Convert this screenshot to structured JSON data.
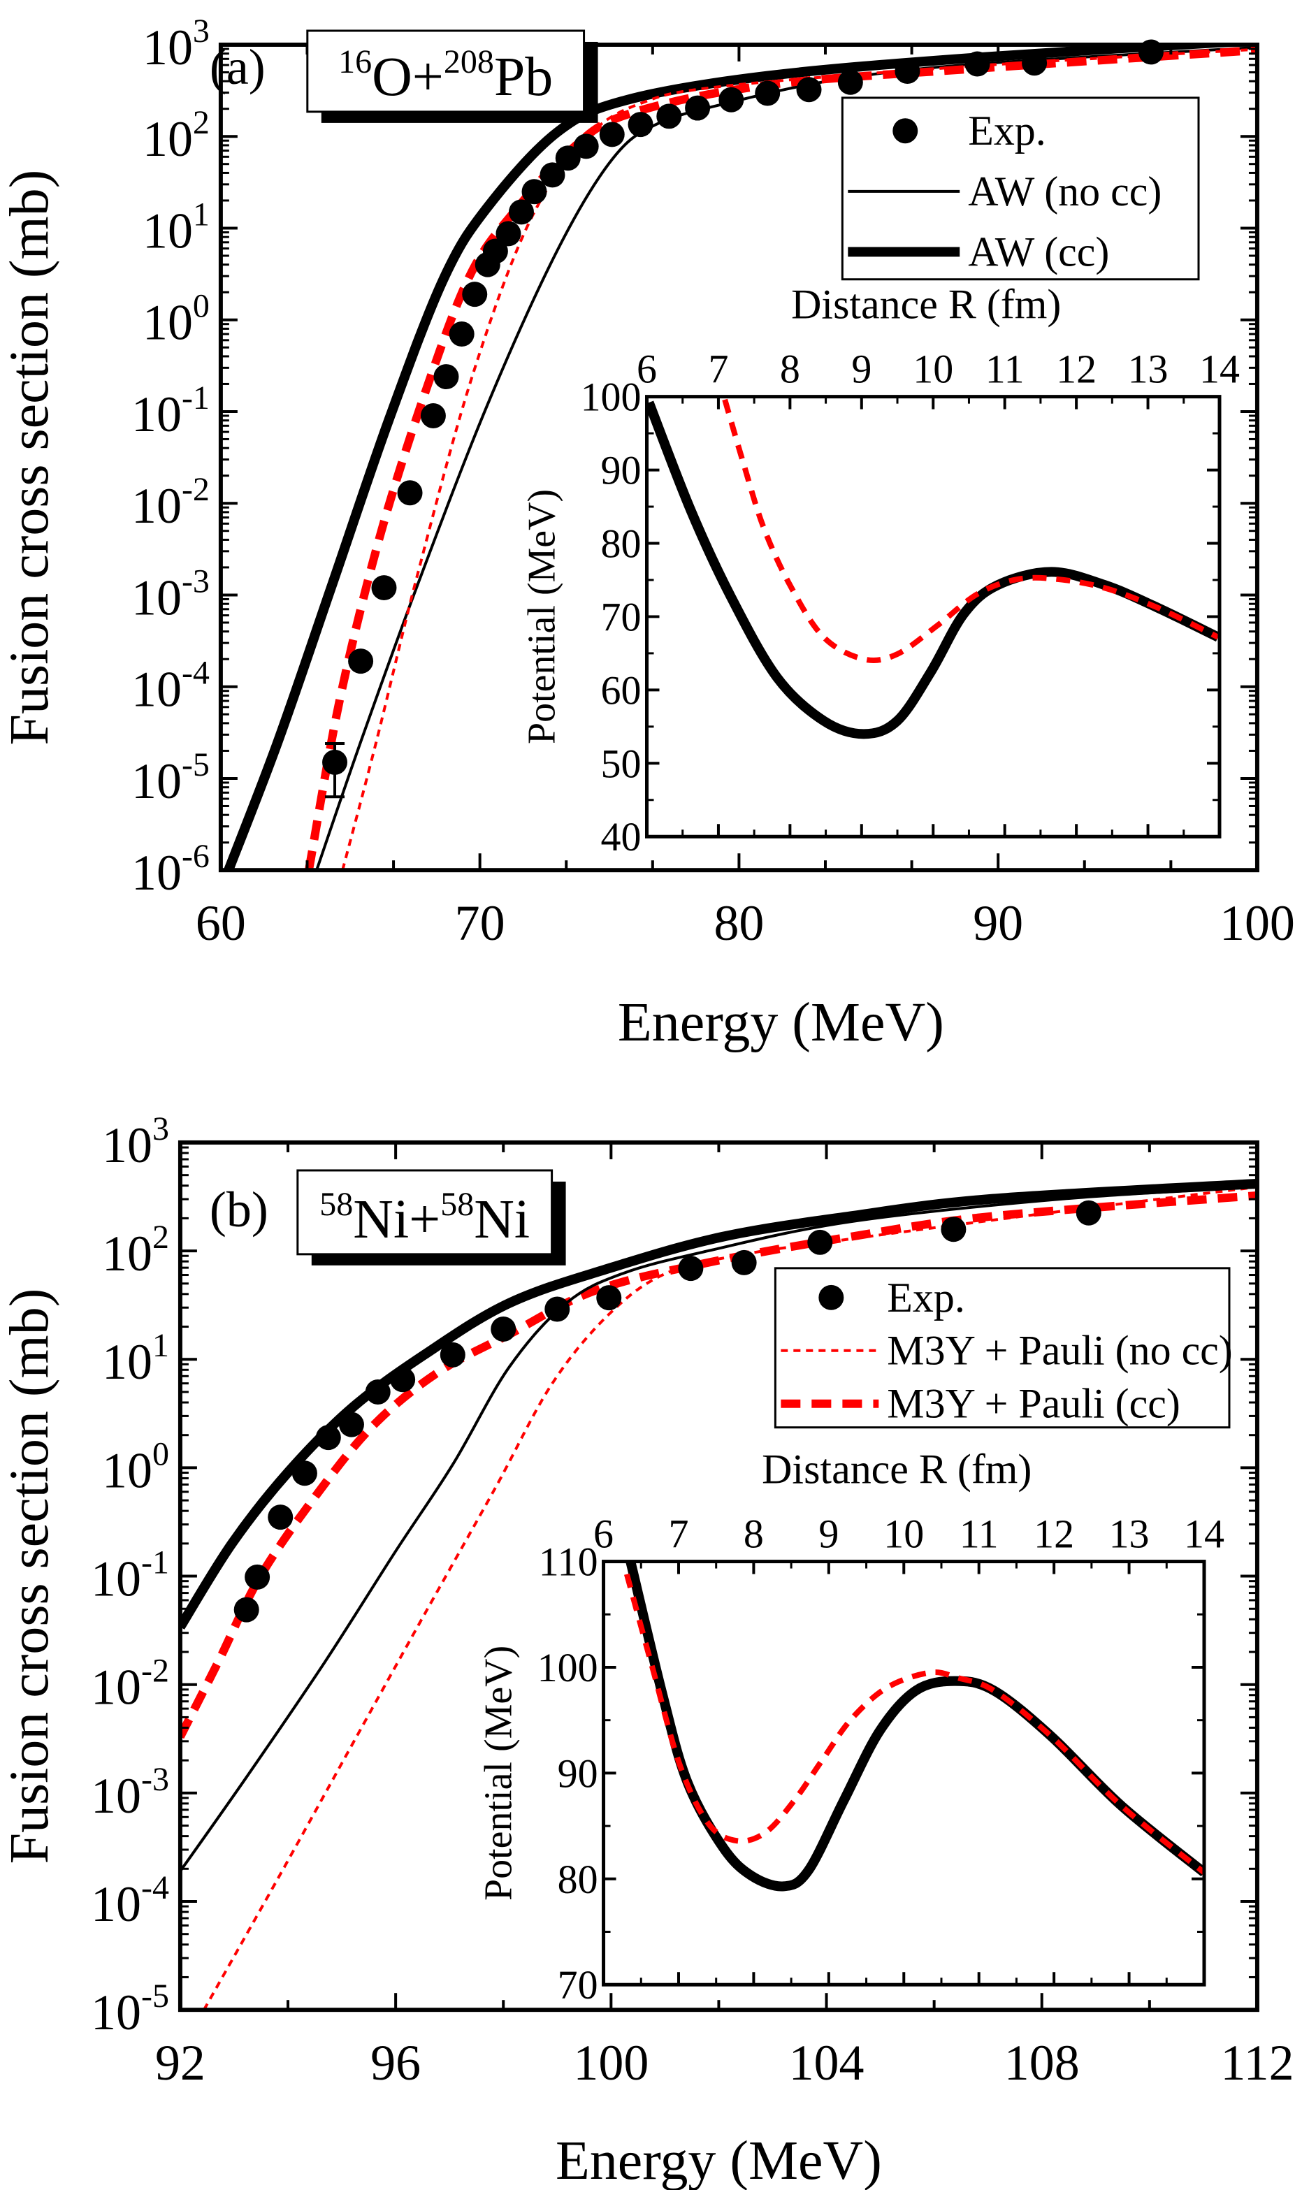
{
  "chart_data": [
    {
      "type": "line",
      "panel_label": "(a)",
      "system": {
        "sup1": "16",
        "el1": "O+",
        "sup2": "208",
        "el2": "Pb"
      },
      "xlabel": "Energy (MeV)",
      "ylabel": "Fusion cross section (mb)",
      "xscale": "linear",
      "yscale": "log",
      "xlim": [
        60,
        100
      ],
      "ylim": [
        1e-06,
        1000
      ],
      "xticks": [
        60,
        70,
        80,
        90,
        100
      ],
      "xtick_labels": [
        "60",
        "70",
        "80",
        "90",
        "100"
      ],
      "yticks": [
        1e-06,
        1e-05,
        0.0001,
        0.001,
        0.01,
        0.1,
        1,
        10,
        100,
        1000
      ],
      "ytick_labels": [
        {
          "base": "10",
          "exp": "-6"
        },
        {
          "base": "10",
          "exp": "-5"
        },
        {
          "base": "10",
          "exp": "-4"
        },
        {
          "base": "10",
          "exp": "-3"
        },
        {
          "base": "10",
          "exp": "-2"
        },
        {
          "base": "10",
          "exp": "-1"
        },
        {
          "base": "10",
          "exp": "0"
        },
        {
          "base": "10",
          "exp": "1"
        },
        {
          "base": "10",
          "exp": "2"
        },
        {
          "base": "10",
          "exp": "3"
        }
      ],
      "legend": {
        "placement": "upper-right",
        "entries": [
          "Exp.",
          "AW (no cc)",
          "AW (cc)"
        ]
      },
      "series": [
        {
          "name": "Exp.",
          "style": "markers",
          "color": "#000000",
          "points": [
            [
              64.4,
              1.5e-05
            ],
            [
              65.4,
              0.00019
            ],
            [
              66.3,
              0.0012
            ],
            [
              67.3,
              0.013
            ],
            [
              68.2,
              0.09
            ],
            [
              68.7,
              0.24
            ],
            [
              69.3,
              0.7
            ],
            [
              69.8,
              1.9
            ],
            [
              70.3,
              4.0
            ],
            [
              70.6,
              5.6
            ],
            [
              71.1,
              8.7
            ],
            [
              71.6,
              15
            ],
            [
              72.1,
              25
            ],
            [
              72.8,
              38
            ],
            [
              73.4,
              58
            ],
            [
              74.1,
              78
            ],
            [
              75.1,
              105
            ],
            [
              76.2,
              135
            ],
            [
              77.3,
              166
            ],
            [
              78.4,
              204
            ],
            [
              79.7,
              251
            ],
            [
              81.1,
              295
            ],
            [
              82.7,
              324
            ],
            [
              84.3,
              389
            ],
            [
              86.5,
              513
            ],
            [
              89.2,
              617
            ],
            [
              91.4,
              631
            ],
            [
              95.9,
              832
            ]
          ],
          "error_bars": [
            {
              "x": 64.4,
              "low": 6.3e-06,
              "high": 2.4e-05
            }
          ]
        },
        {
          "name": "AW (no cc)",
          "style": "black-thin",
          "color": "#000000",
          "points": [
            [
              63.7,
              1e-06
            ],
            [
              65.4,
              2.5e-05
            ],
            [
              67.6,
              0.0013
            ],
            [
              70.3,
              0.12
            ],
            [
              73,
              5.8
            ],
            [
              75.1,
              56
            ],
            [
              76.8,
              135
            ],
            [
              79.5,
              229
            ],
            [
              83.8,
              417
            ],
            [
              89.2,
              617
            ],
            [
              100,
              933
            ]
          ]
        },
        {
          "name": "AW (cc)",
          "style": "black-thick",
          "color": "#000000",
          "points": [
            [
              60.3,
              1e-06
            ],
            [
              62.2,
              2.5e-05
            ],
            [
              64.3,
              0.0013
            ],
            [
              66.5,
              0.083
            ],
            [
              68.6,
              2.8
            ],
            [
              70.3,
              17
            ],
            [
              73,
              112
            ],
            [
              75.7,
              251
            ],
            [
              81.1,
              457
            ],
            [
              89.2,
              724
            ],
            [
              100,
              1120
            ]
          ]
        },
        {
          "style": "red-thin-dot",
          "color": "#ff0000",
          "points": [
            [
              64.7,
              1e-06
            ],
            [
              66,
              2.5e-05
            ],
            [
              67.6,
              0.0017
            ],
            [
              69.7,
              0.24
            ],
            [
              71.9,
              11.5
            ],
            [
              74.1,
              95
            ],
            [
              76.2,
              229
            ],
            [
              79.5,
              355
            ],
            [
              89.2,
              589
            ],
            [
              100,
              891
            ]
          ]
        },
        {
          "style": "red-thick-dash",
          "color": "#ff0000",
          "points": [
            [
              63.4,
              1e-06
            ],
            [
              64.6,
              7.4e-05
            ],
            [
              66.2,
              0.005
            ],
            [
              68.1,
              0.24
            ],
            [
              69.7,
              3.4
            ],
            [
              71.4,
              16
            ],
            [
              73.5,
              71
            ],
            [
              75.7,
              174
            ],
            [
              81.1,
              363
            ],
            [
              89.2,
              550
            ],
            [
              100,
              871
            ]
          ]
        }
      ],
      "inset": {
        "xlabel": "Distance R (fm)",
        "ylabel": "Potential (MeV)",
        "xlim": [
          6,
          14
        ],
        "ylim": [
          40,
          100
        ],
        "xticks": [
          6,
          7,
          8,
          9,
          10,
          11,
          12,
          13,
          14
        ],
        "yticks": [
          40,
          50,
          60,
          70,
          80,
          90,
          100
        ],
        "series": [
          {
            "style": "black-thick",
            "color": "#000000",
            "points": [
              [
                6.03,
                99.2
              ],
              [
                6.61,
                84.6
              ],
              [
                7.17,
                72.8
              ],
              [
                7.82,
                61.7
              ],
              [
                8.47,
                55.8
              ],
              [
                9.03,
                54
              ],
              [
                9.5,
                55.8
              ],
              [
                9.97,
                62.5
              ],
              [
                10.43,
                70.4
              ],
              [
                10.9,
                74.3
              ],
              [
                11.65,
                76.1
              ],
              [
                12.4,
                74.3
              ],
              [
                13.14,
                71.2
              ],
              [
                13.98,
                67.2
              ]
            ]
          },
          {
            "style": "red-dash",
            "color": "#ff0000",
            "points": [
              [
                7.09,
                99.6
              ],
              [
                7.35,
                90.9
              ],
              [
                7.63,
                82.2
              ],
              [
                8.0,
                74.3
              ],
              [
                8.47,
                67.2
              ],
              [
                9.03,
                64.2
              ],
              [
                9.5,
                64.9
              ],
              [
                10.06,
                68.8
              ],
              [
                10.62,
                73.1
              ],
              [
                11.18,
                75.1
              ],
              [
                11.74,
                75.1
              ],
              [
                12.4,
                73.9
              ],
              [
                13.14,
                71.2
              ],
              [
                13.98,
                67.2
              ]
            ]
          }
        ]
      }
    },
    {
      "type": "line",
      "panel_label": "(b)",
      "system": {
        "sup1": "58",
        "el1": "Ni+",
        "sup2": "58",
        "el2": "Ni"
      },
      "xlabel": "Energy (MeV)",
      "ylabel": "Fusion cross section (mb)",
      "xscale": "linear",
      "yscale": "log",
      "xlim": [
        92,
        112
      ],
      "ylim": [
        1e-05,
        1000
      ],
      "xticks": [
        92,
        96,
        100,
        104,
        108,
        112
      ],
      "xtick_labels": [
        "92",
        "96",
        "100",
        "104",
        "108",
        "112"
      ],
      "yticks": [
        1e-05,
        0.0001,
        0.001,
        0.01,
        0.1,
        1,
        10,
        100,
        1000
      ],
      "ytick_labels": [
        {
          "base": "10",
          "exp": "-5"
        },
        {
          "base": "10",
          "exp": "-4"
        },
        {
          "base": "10",
          "exp": "-3"
        },
        {
          "base": "10",
          "exp": "-2"
        },
        {
          "base": "10",
          "exp": "-1"
        },
        {
          "base": "10",
          "exp": "0"
        },
        {
          "base": "10",
          "exp": "1"
        },
        {
          "base": "10",
          "exp": "2"
        },
        {
          "base": "10",
          "exp": "3"
        }
      ],
      "legend": {
        "placement": "upper-right",
        "entries": [
          "Exp.",
          "M3Y + Pauli (no cc)",
          "M3Y + Pauli (cc)"
        ]
      },
      "series": [
        {
          "name": "Exp.",
          "style": "markers",
          "color": "#000000",
          "points": [
            [
              93.23,
              0.049
            ],
            [
              93.43,
              0.098
            ],
            [
              93.86,
              0.35
            ],
            [
              94.31,
              0.89
            ],
            [
              94.75,
              1.9
            ],
            [
              95.18,
              2.5
            ],
            [
              95.67,
              5.0
            ],
            [
              96.13,
              6.5
            ],
            [
              97.06,
              11
            ],
            [
              98.0,
              19
            ],
            [
              99.0,
              29
            ],
            [
              99.96,
              37
            ],
            [
              101.48,
              69
            ],
            [
              102.47,
              78
            ],
            [
              103.88,
              120
            ],
            [
              106.36,
              158
            ],
            [
              108.87,
              224
            ]
          ]
        },
        {
          "name": "M3Y + Pauli (no cc)",
          "style": "red-thin-dot",
          "color": "#ff0000",
          "points": [
            [
              92.44,
              1e-05
            ],
            [
              93.89,
              0.00019
            ],
            [
              95.21,
              0.0029
            ],
            [
              96.53,
              0.044
            ],
            [
              97.85,
              0.65
            ],
            [
              98.9,
              5.9
            ],
            [
              99.96,
              26
            ],
            [
              101.02,
              62
            ],
            [
              102.47,
              93
            ],
            [
              104.45,
              129
            ],
            [
              108,
              220
            ],
            [
              112,
              389
            ]
          ]
        },
        {
          "name": "M3Y + Pauli (cc)",
          "style": "red-thick-dash",
          "color": "#ff0000",
          "points": [
            [
              92,
              0.0033
            ],
            [
              92.7,
              0.016
            ],
            [
              93.49,
              0.1
            ],
            [
              94.55,
              0.58
            ],
            [
              95.6,
              2.5
            ],
            [
              96.79,
              7.6
            ],
            [
              98.11,
              17
            ],
            [
              99.7,
              43
            ],
            [
              101.8,
              78
            ],
            [
              104.45,
              135
            ],
            [
              107.09,
              209
            ],
            [
              112,
              324
            ]
          ]
        },
        {
          "style": "black-thin",
          "color": "#000000",
          "points": [
            [
              92,
              0.00019
            ],
            [
              93.23,
              0.0014
            ],
            [
              94.68,
              0.016
            ],
            [
              96,
              0.17
            ],
            [
              97.06,
              1.07
            ],
            [
              98.11,
              8.5
            ],
            [
              99.17,
              33
            ],
            [
              100.22,
              62
            ],
            [
              101.8,
              100
            ],
            [
              104.45,
              186
            ],
            [
              108.4,
              302
            ],
            [
              112,
              389
            ]
          ]
        },
        {
          "style": "black-thick",
          "color": "#000000",
          "points": [
            [
              92,
              0.034
            ],
            [
              92.96,
              0.2
            ],
            [
              94.02,
              0.93
            ],
            [
              95.2,
              3.6
            ],
            [
              96.53,
              11
            ],
            [
              98.11,
              33
            ],
            [
              99.96,
              69
            ],
            [
              102.07,
              135
            ],
            [
              104.45,
              209
            ],
            [
              107.09,
              302
            ],
            [
              112,
              417
            ]
          ]
        }
      ],
      "inset": {
        "xlabel": "Distance R (fm)",
        "ylabel": "Potential  (MeV)",
        "xlim": [
          6,
          14
        ],
        "ylim": [
          70,
          110
        ],
        "xticks": [
          6,
          7,
          8,
          9,
          10,
          11,
          12,
          13,
          14
        ],
        "yticks": [
          70,
          80,
          90,
          100,
          110
        ],
        "series": [
          {
            "style": "black-thick",
            "color": "#000000",
            "points": [
              [
                6.36,
                110
              ],
              [
                6.79,
                97.3
              ],
              [
                7.12,
                89.1
              ],
              [
                7.59,
                83
              ],
              [
                7.97,
                80.3
              ],
              [
                8.4,
                79.3
              ],
              [
                8.73,
                80.8
              ],
              [
                9.2,
                87.4
              ],
              [
                9.68,
                94
              ],
              [
                10.16,
                97.8
              ],
              [
                10.68,
                98.7
              ],
              [
                11.2,
                97.8
              ],
              [
                11.96,
                93.5
              ],
              [
                12.9,
                86.9
              ],
              [
                14,
                80.6
              ]
            ]
          },
          {
            "style": "red-dash",
            "color": "#ff0000",
            "points": [
              [
                6.31,
                108.8
              ],
              [
                6.65,
                100
              ],
              [
                7.02,
                90.7
              ],
              [
                7.4,
                85.2
              ],
              [
                7.78,
                83.6
              ],
              [
                8.16,
                84.4
              ],
              [
                8.54,
                87.4
              ],
              [
                8.92,
                91.3
              ],
              [
                9.3,
                95.1
              ],
              [
                9.78,
                98.1
              ],
              [
                10.35,
                99.5
              ],
              [
                10.72,
                99
              ],
              [
                11.2,
                97.8
              ],
              [
                11.96,
                93.5
              ],
              [
                12.9,
                86.9
              ],
              [
                14,
                80.6
              ]
            ]
          }
        ]
      }
    }
  ]
}
